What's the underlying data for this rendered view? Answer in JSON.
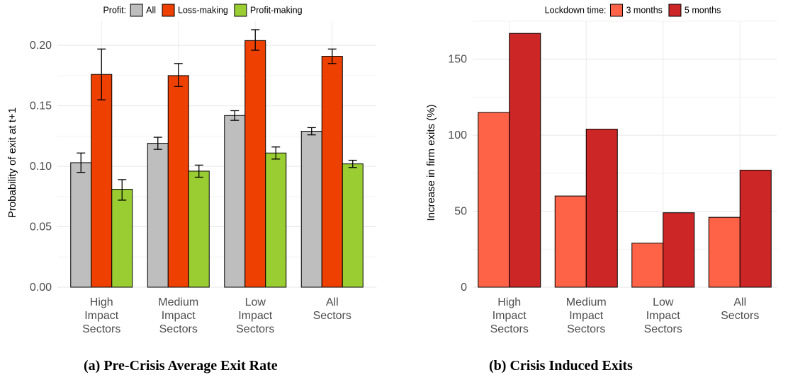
{
  "captions": {
    "a": "(a) Pre-Crisis Average Exit Rate",
    "b": "(b) Crisis Induced Exits"
  },
  "chart_data": [
    {
      "type": "bar",
      "legend_title": "Profit:",
      "legend_position": "top",
      "ylabel": "Probability of exit at t+1",
      "xlabel": "",
      "ylim": [
        0,
        0.22
      ],
      "yticks": [
        0.0,
        0.05,
        0.1,
        0.15,
        0.2
      ],
      "ytick_labels": [
        "0.00",
        "0.05",
        "0.10",
        "0.15",
        "0.20"
      ],
      "grid": true,
      "error_bars": true,
      "categories": [
        "High Impact Sectors",
        "Medium Impact Sectors",
        "Low Impact Sectors",
        "All Sectors"
      ],
      "category_lines": [
        [
          "High",
          "Impact",
          "Sectors"
        ],
        [
          "Medium",
          "Impact",
          "Sectors"
        ],
        [
          "Low",
          "Impact",
          "Sectors"
        ],
        [
          "All",
          "Sectors"
        ]
      ],
      "series": [
        {
          "name": "All",
          "color": "#bebebe",
          "values": [
            0.103,
            0.119,
            0.142,
            0.129
          ],
          "err_low": [
            0.095,
            0.114,
            0.138,
            0.126
          ],
          "err_high": [
            0.111,
            0.124,
            0.146,
            0.132
          ]
        },
        {
          "name": "Loss-making",
          "color": "#ee4000",
          "values": [
            0.176,
            0.175,
            0.204,
            0.191
          ],
          "err_low": [
            0.155,
            0.166,
            0.196,
            0.185
          ],
          "err_high": [
            0.197,
            0.185,
            0.213,
            0.197
          ]
        },
        {
          "name": "Profit-making",
          "color": "#9acd32",
          "values": [
            0.081,
            0.096,
            0.111,
            0.102
          ],
          "err_low": [
            0.072,
            0.091,
            0.106,
            0.099
          ],
          "err_high": [
            0.089,
            0.101,
            0.116,
            0.105
          ]
        }
      ]
    },
    {
      "type": "bar",
      "legend_title": "Lockdown time:",
      "legend_position": "top",
      "ylabel": "Increase in firm exits (%)",
      "xlabel": "",
      "ylim": [
        0,
        175
      ],
      "yticks": [
        0,
        50,
        100,
        150
      ],
      "ytick_labels": [
        "0",
        "50",
        "100",
        "150"
      ],
      "grid": true,
      "error_bars": false,
      "categories": [
        "High Impact Sectors",
        "Medium Impact Sectors",
        "Low Impact Sectors",
        "All Sectors"
      ],
      "category_lines": [
        [
          "High",
          "Impact",
          "Sectors"
        ],
        [
          "Medium",
          "Impact",
          "Sectors"
        ],
        [
          "Low",
          "Impact",
          "Sectors"
        ],
        [
          "All",
          "Sectors"
        ]
      ],
      "series": [
        {
          "name": "3 months",
          "color": "#ff6347",
          "values": [
            115,
            60,
            29,
            46
          ]
        },
        {
          "name": "5 months",
          "color": "#cd2626",
          "values": [
            167,
            104,
            49,
            77
          ]
        }
      ]
    }
  ]
}
